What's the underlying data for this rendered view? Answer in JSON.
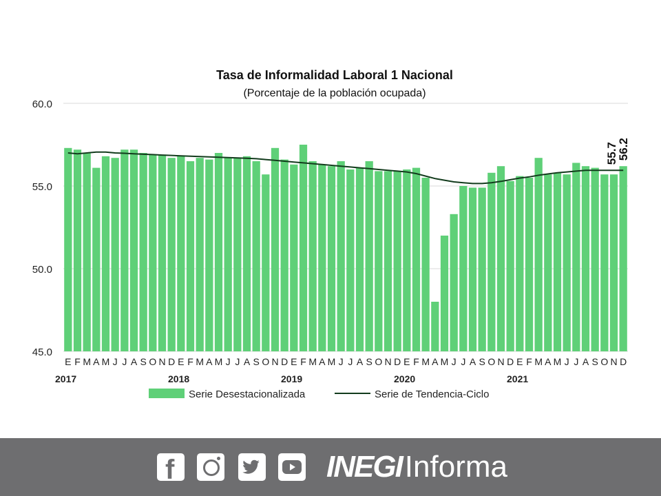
{
  "chart_data": {
    "type": "bar",
    "title": "Tasa de Informalidad Laboral 1 Nacional",
    "subtitle": "(Porcentaje de la población ocupada)",
    "ylim": [
      45.0,
      60.0
    ],
    "yticks": [
      "45.0",
      "50.0",
      "55.0",
      "60.0"
    ],
    "grid": "horizontal",
    "legend_position": "bottom",
    "month_labels": [
      "E",
      "F",
      "M",
      "A",
      "M",
      "J",
      "J",
      "A",
      "S",
      "O",
      "N",
      "D",
      "E",
      "F",
      "M",
      "A",
      "M",
      "J",
      "J",
      "A",
      "S",
      "O",
      "N",
      "D",
      "E",
      "F",
      "M",
      "A",
      "M",
      "J",
      "J",
      "A",
      "S",
      "O",
      "N",
      "D",
      "E",
      "F",
      "M",
      "A",
      "M",
      "J",
      "J",
      "A",
      "S",
      "O",
      "N",
      "D",
      "E",
      "F",
      "M",
      "A",
      "M",
      "J",
      "J",
      "A",
      "S",
      "O",
      "N",
      "D"
    ],
    "years": [
      {
        "label": "2017",
        "index": 0
      },
      {
        "label": "2018",
        "index": 12
      },
      {
        "label": "2019",
        "index": 24
      },
      {
        "label": "2020",
        "index": 36
      },
      {
        "label": "2021",
        "index": 48
      }
    ],
    "series": [
      {
        "name": "Serie Desestacionalizada",
        "type": "bar",
        "color": "#5fd078",
        "values": [
          57.3,
          57.2,
          57.0,
          56.1,
          56.8,
          56.7,
          57.2,
          57.2,
          57.0,
          56.9,
          56.9,
          56.7,
          56.8,
          56.5,
          56.7,
          56.6,
          57.0,
          56.7,
          56.7,
          56.8,
          56.5,
          55.7,
          57.3,
          56.6,
          56.3,
          57.5,
          56.5,
          56.3,
          56.2,
          56.5,
          56.0,
          56.1,
          56.5,
          55.9,
          55.9,
          55.9,
          56.0,
          56.1,
          55.5,
          48.0,
          52.0,
          53.3,
          55.0,
          54.9,
          54.9,
          55.8,
          56.2,
          55.3,
          55.6,
          55.5,
          56.7,
          55.7,
          55.8,
          55.7,
          56.4,
          56.2,
          56.1,
          55.7,
          55.7,
          56.2
        ]
      },
      {
        "name": "Serie de Tendencia-Ciclo",
        "type": "line",
        "color": "#123b1c",
        "values": [
          57.0,
          56.95,
          57.0,
          57.05,
          57.05,
          57.0,
          56.98,
          56.95,
          56.92,
          56.9,
          56.87,
          56.85,
          56.82,
          56.8,
          56.78,
          56.76,
          56.74,
          56.72,
          56.7,
          56.68,
          56.65,
          56.6,
          56.55,
          56.5,
          56.45,
          56.4,
          56.35,
          56.3,
          56.25,
          56.2,
          56.15,
          56.1,
          56.05,
          56.0,
          55.95,
          55.9,
          55.85,
          55.75,
          55.6,
          55.45,
          55.35,
          55.25,
          55.2,
          55.15,
          55.15,
          55.2,
          55.28,
          55.38,
          55.48,
          55.55,
          55.65,
          55.73,
          55.8,
          55.85,
          55.9,
          55.95,
          55.95,
          55.95,
          55.95,
          55.95
        ]
      }
    ],
    "annotations": [
      "55.7",
      "56.2"
    ]
  },
  "footer": {
    "icons": [
      "facebook-icon",
      "instagram-icon",
      "twitter-icon",
      "youtube-icon"
    ],
    "brand_bold": "INEGI",
    "brand_light": "Informa"
  }
}
